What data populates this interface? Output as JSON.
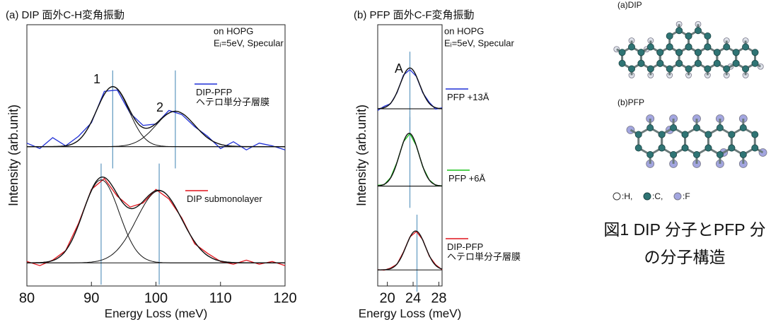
{
  "chart_data": [
    {
      "type": "line",
      "title": "(a) DIP 面外C-H変角振動",
      "x_label": "Energy Loss (meV)",
      "y_label": "Intensity (arb.unit)",
      "notes": [
        "on HOPG",
        "Eᵢ=5eV, Specular"
      ],
      "annotations": [
        "1",
        "2"
      ],
      "xlim": [
        80,
        120
      ],
      "xticks": [
        80,
        90,
        100,
        110,
        120
      ],
      "ylim": [
        0,
        9.6
      ],
      "x": [
        80,
        82,
        84,
        86,
        88,
        90,
        92,
        94,
        96,
        98,
        100,
        102,
        104,
        106,
        108,
        110,
        112,
        114,
        116,
        118,
        120
      ],
      "series": [
        {
          "name": "DIP-PFP\nヘテロ単分子層膜",
          "color": "#1f2fd6",
          "values": [
            5.25,
            5.05,
            5.45,
            5.15,
            5.5,
            6.0,
            7.15,
            7.2,
            6.35,
            5.9,
            5.95,
            6.45,
            6.3,
            5.85,
            5.5,
            5.05,
            5.3,
            5.0,
            5.25,
            5.15,
            5.0
          ],
          "fit": {
            "baseline": 5.12,
            "peaks": [
              {
                "center": 93.3,
                "height": 2.2,
                "width": 2.5
              },
              {
                "center": 103,
                "height": 1.3,
                "width": 3
              }
            ]
          },
          "markers": [
            93.3,
            103
          ]
        },
        {
          "name": "DIP submonolayer",
          "color": "#e0141c",
          "values": [
            0.9,
            0.75,
            0.95,
            1.3,
            2.3,
            3.55,
            3.95,
            3.3,
            2.9,
            3.05,
            3.55,
            3.2,
            2.5,
            1.55,
            1.2,
            0.9,
            0.8,
            0.95,
            0.8,
            0.9,
            0.75
          ],
          "fit": {
            "baseline": 0.85,
            "peaks": [
              {
                "center": 91.5,
                "height": 3.05,
                "width": 2.8
              },
              {
                "center": 100.5,
                "height": 2.65,
                "width": 3.5
              }
            ]
          },
          "markers": [
            91.5,
            100.5
          ]
        }
      ]
    },
    {
      "type": "line",
      "title": "(b) PFP 面外C-F変角振動",
      "x_label": "Energy Loss (meV)",
      "y_label": "Intensity (arb.unit)",
      "notes": [
        "on HOPG",
        "Eᵢ=5eV, Specular"
      ],
      "annotations": [
        "A"
      ],
      "xlim": [
        18.5,
        28.5
      ],
      "xticks": [
        20,
        24,
        28
      ],
      "ylim": [
        0,
        9.6
      ],
      "x": [
        18.5,
        19.5,
        20.5,
        21.5,
        22.5,
        23.5,
        24.5,
        25.5,
        26.5,
        27.5,
        28.5
      ],
      "series": [
        {
          "name": "PFP +13Å",
          "color": "#1f2fd6",
          "values": [
            6.45,
            6.6,
            6.7,
            7.1,
            7.75,
            7.95,
            7.7,
            7.1,
            6.75,
            6.5,
            6.55
          ],
          "fit": {
            "baseline": 6.51,
            "peaks": [
              {
                "center": 23.5,
                "height": 1.5,
                "width": 1.5
              }
            ]
          },
          "markers": [
            23.5
          ]
        },
        {
          "name": "PFP +6Å",
          "color": "#19c419",
          "values": [
            3.7,
            3.72,
            3.98,
            4.55,
            5.3,
            5.6,
            5.15,
            4.38,
            3.9,
            3.7,
            3.68
          ],
          "fit": {
            "baseline": 3.67,
            "peaks": [
              {
                "center": 23.4,
                "height": 1.94,
                "width": 1.5
              }
            ]
          },
          "markers": [
            23.5
          ]
        },
        {
          "name": "DIP-PFP\nヘテロ単分子層膜",
          "color": "#e0141c",
          "values": [
            0.6,
            0.58,
            0.66,
            0.8,
            1.25,
            1.8,
            2.0,
            1.7,
            1.1,
            0.78,
            0.6
          ],
          "fit": {
            "baseline": 0.59,
            "peaks": [
              {
                "center": 24.4,
                "height": 1.43,
                "width": 1.5
              }
            ]
          },
          "markers": [
            24.6
          ]
        }
      ]
    }
  ],
  "structures": {
    "labels": [
      "(a)DIP",
      "(b)PFP"
    ],
    "legend": [
      ":H,",
      ":C,",
      ":F"
    ],
    "caption": [
      "図1 DIP 分子とPFP 分",
      "の分子構造"
    ]
  }
}
